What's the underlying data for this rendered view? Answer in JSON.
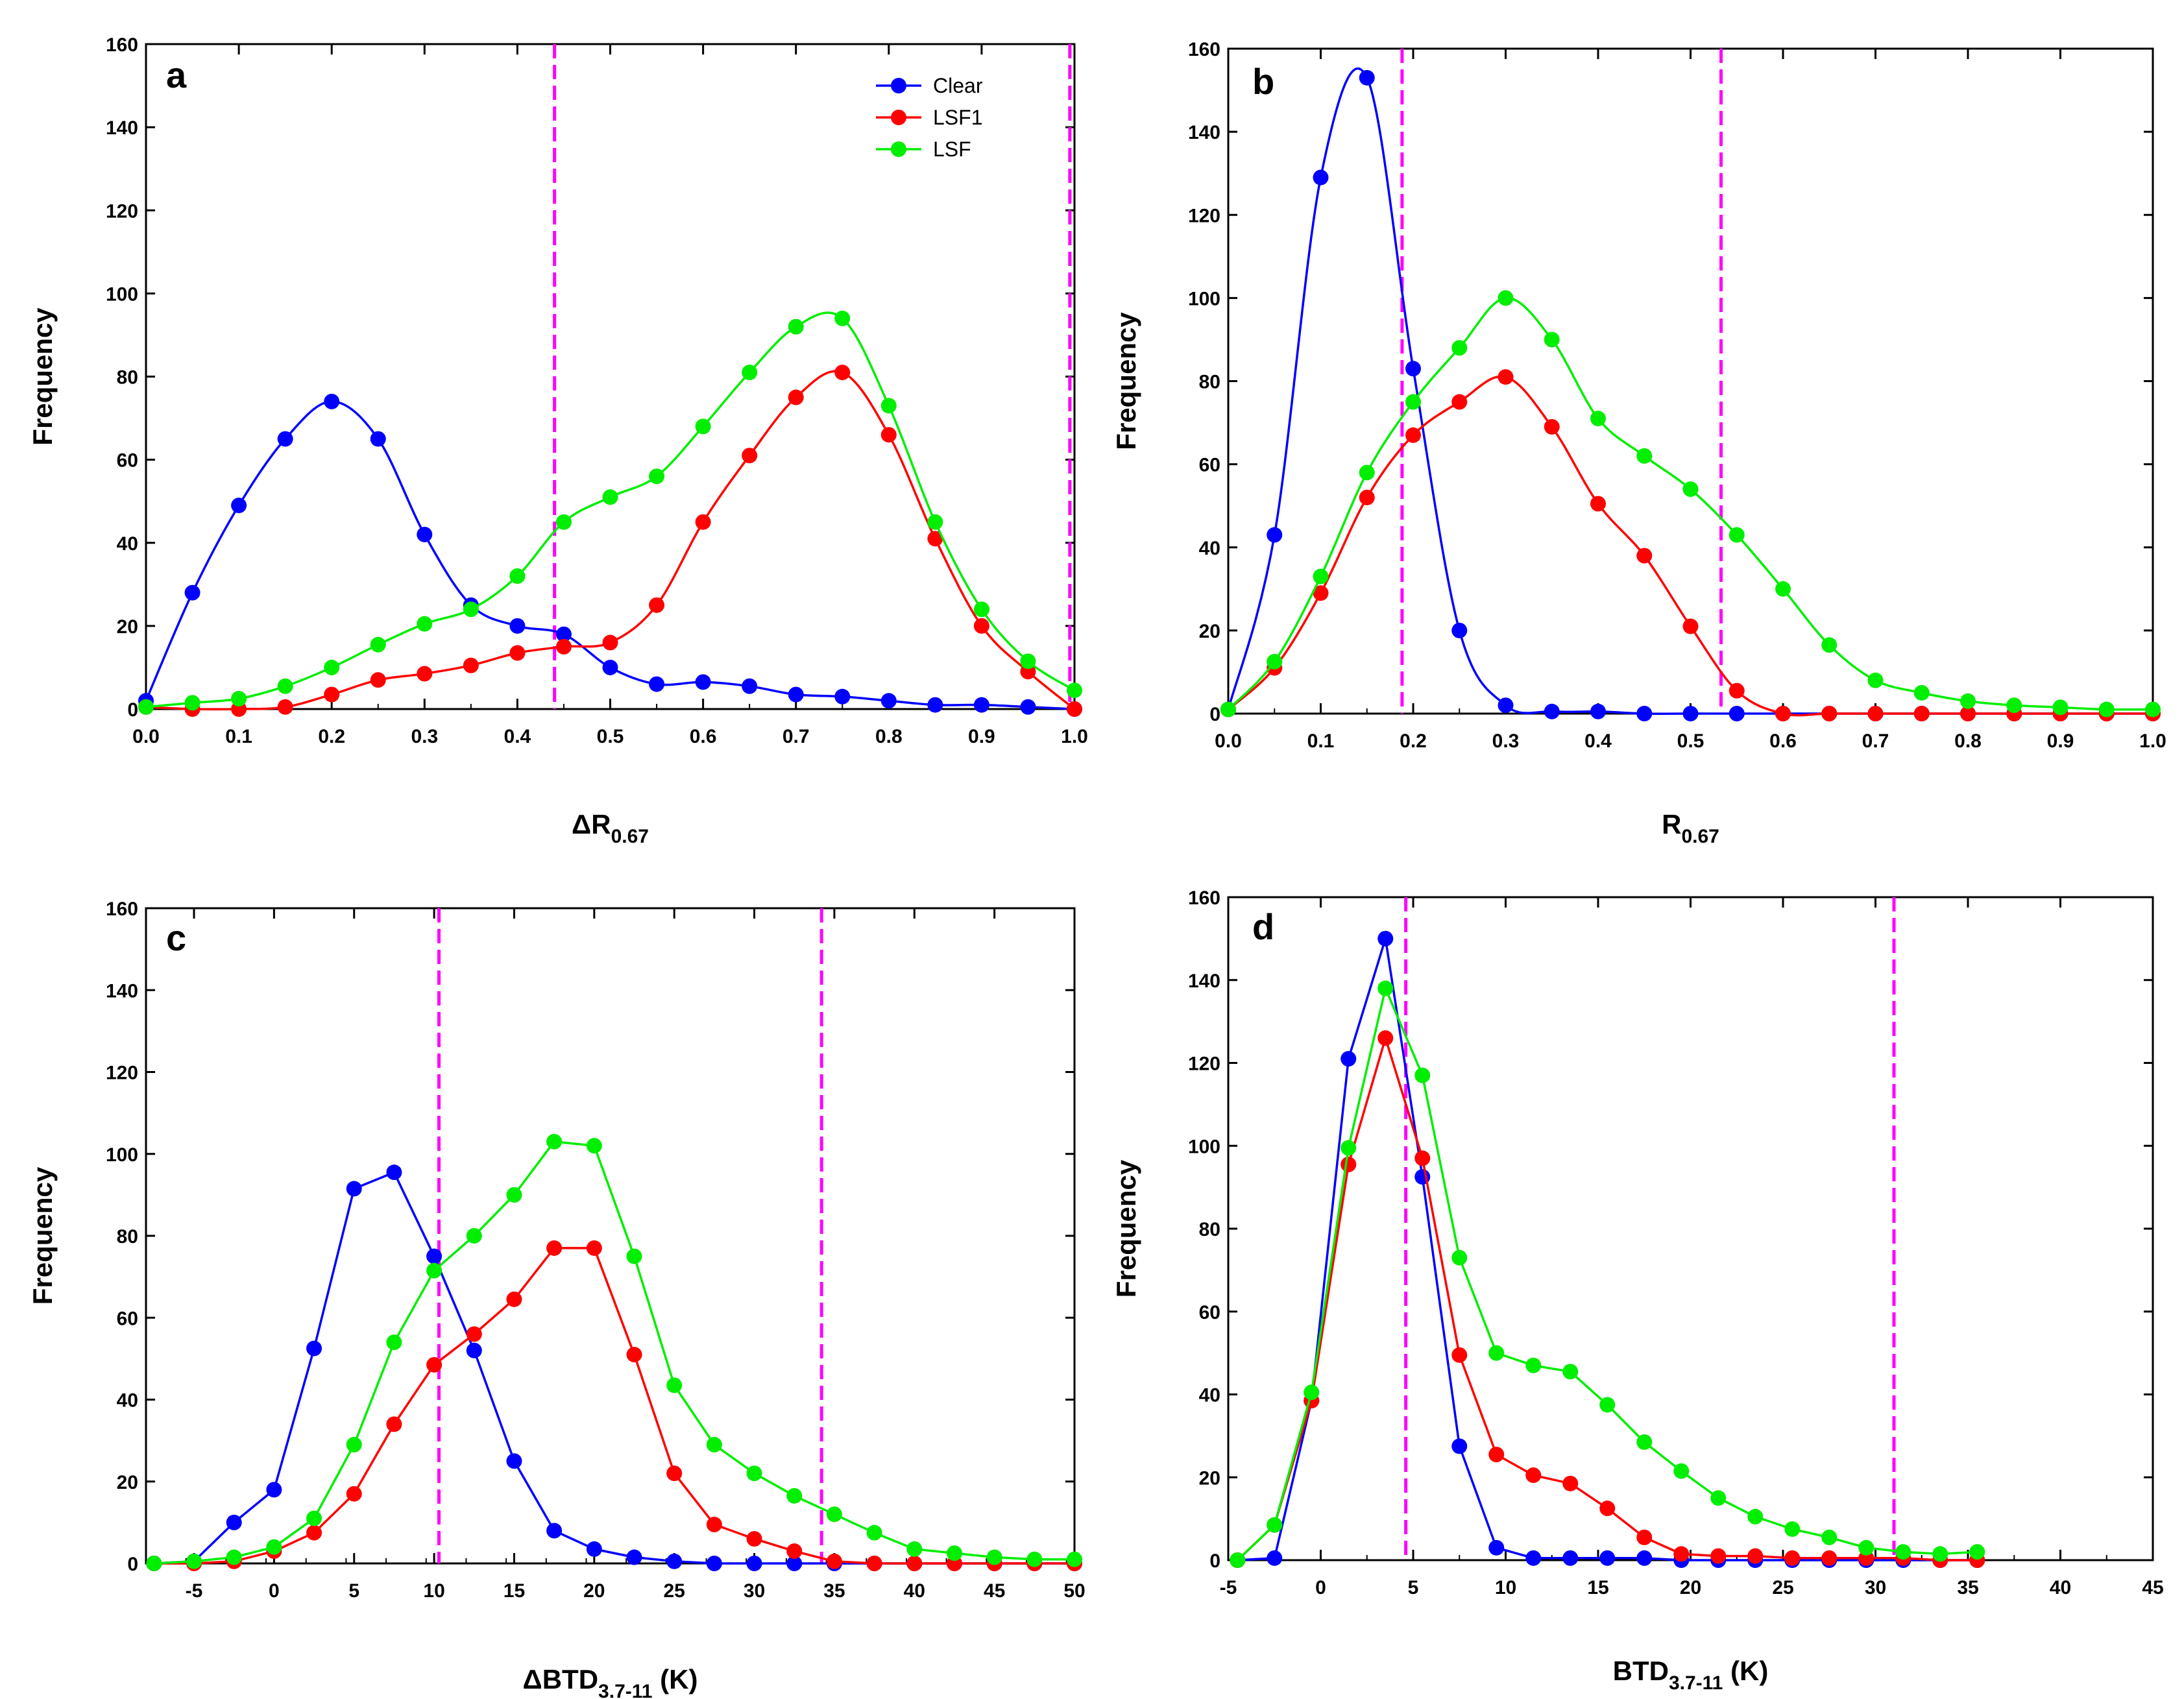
{
  "colors": {
    "Clear": "#0000ff",
    "LSF1": "#ff0000",
    "LSF": "#00ee00",
    "threshold": "#ff00ff",
    "axis": "#000000"
  },
  "chart_data": [
    {
      "type": "line",
      "panel": "a",
      "smooth": true,
      "xlabel_main": "ΔR",
      "xlabel_sub": "0.67",
      "ylabel": "Frequency",
      "xlim": [
        0.0,
        1.0
      ],
      "ylim": [
        0,
        160
      ],
      "xticks": [
        "0.0",
        "0.1",
        "0.2",
        "0.3",
        "0.4",
        "0.5",
        "0.6",
        "0.7",
        "0.8",
        "0.9",
        "1.0"
      ],
      "yticks": [
        "0",
        "20",
        "40",
        "60",
        "80",
        "100",
        "120",
        "140",
        "160"
      ],
      "thresholds": [
        0.44,
        0.995
      ],
      "legend": {
        "position": "top-right",
        "entries": [
          "Clear",
          "LSF1",
          "LSF"
        ]
      },
      "x": [
        0.0,
        0.05,
        0.1,
        0.15,
        0.2,
        0.25,
        0.3,
        0.35,
        0.4,
        0.45,
        0.5,
        0.55,
        0.6,
        0.65,
        0.7,
        0.75,
        0.8,
        0.85,
        0.9,
        0.95,
        1.0
      ],
      "series": [
        {
          "name": "Clear",
          "values": [
            2,
            28,
            49,
            65,
            74,
            65,
            42,
            25,
            20,
            18,
            10,
            6,
            6.5,
            5.5,
            3.5,
            3,
            2,
            1,
            1,
            0.5,
            0
          ]
        },
        {
          "name": "LSF1",
          "values": [
            0.5,
            0,
            0,
            0.5,
            3.5,
            7,
            8.5,
            10.5,
            13.5,
            15,
            16,
            25,
            45,
            61,
            75,
            81,
            66,
            41,
            20,
            9,
            0
          ]
        },
        {
          "name": "LSF",
          "values": [
            0.5,
            1.5,
            2.5,
            5.5,
            10,
            15.5,
            20.5,
            24,
            32,
            45,
            51,
            56,
            68,
            81,
            92,
            94,
            73,
            45,
            24,
            11.5,
            4.5
          ]
        }
      ]
    },
    {
      "type": "line",
      "panel": "b",
      "smooth": true,
      "xlabel_main": "R",
      "xlabel_sub": "0.67",
      "ylabel": "Frequency",
      "xlim": [
        0.0,
        1.0
      ],
      "ylim": [
        0,
        160
      ],
      "xticks": [
        "0.0",
        "0.1",
        "0.2",
        "0.3",
        "0.4",
        "0.5",
        "0.6",
        "0.7",
        "0.8",
        "0.9",
        "1.0"
      ],
      "yticks": [
        "0",
        "20",
        "40",
        "60",
        "80",
        "100",
        "120",
        "140",
        "160"
      ],
      "thresholds": [
        0.188,
        0.533
      ],
      "x": [
        0.0,
        0.05,
        0.1,
        0.15,
        0.2,
        0.25,
        0.3,
        0.35,
        0.4,
        0.45,
        0.5,
        0.55,
        0.6,
        0.65,
        0.7,
        0.75,
        0.8,
        0.85,
        0.9,
        0.95,
        1.0
      ],
      "series": [
        {
          "name": "Clear",
          "values": [
            1,
            43,
            129,
            153,
            83,
            20,
            2,
            0.5,
            0.5,
            0,
            0,
            0,
            0,
            0,
            0,
            0,
            0,
            0,
            0,
            0,
            0
          ]
        },
        {
          "name": "LSF1",
          "values": [
            1,
            11,
            29,
            52,
            67,
            75,
            81,
            69,
            50.5,
            38,
            21,
            5.5,
            0,
            0,
            0,
            0,
            0,
            0,
            0,
            0,
            0
          ]
        },
        {
          "name": "LSF",
          "values": [
            1,
            12.5,
            33,
            58,
            75,
            88,
            100,
            90,
            71,
            62,
            54,
            43,
            30,
            16.5,
            8,
            5,
            3,
            2,
            1.5,
            1,
            1
          ]
        }
      ]
    },
    {
      "type": "line",
      "panel": "c",
      "smooth": false,
      "xlabel_main": "ΔBTD",
      "xlabel_sub": "3.7-11",
      "xlabel_unit": " (K)",
      "ylabel": "Frequency",
      "xlim": [
        -8,
        50
      ],
      "ylim": [
        0,
        160
      ],
      "xticks": [
        "-5",
        "0",
        "5",
        "10",
        "15",
        "20",
        "25",
        "30",
        "35",
        "40",
        "45",
        "50"
      ],
      "yticks": [
        "0",
        "20",
        "40",
        "60",
        "80",
        "100",
        "120",
        "140",
        "160"
      ],
      "thresholds": [
        10.3,
        34.2
      ],
      "x": [
        -7.5,
        -5,
        -2.5,
        0,
        2.5,
        5,
        7.5,
        10,
        12.5,
        15,
        17.5,
        20,
        22.5,
        25,
        27.5,
        30,
        32.5,
        35,
        37.5,
        40,
        42.5,
        45,
        47.5,
        50
      ],
      "series": [
        {
          "name": "Clear",
          "values": [
            0,
            0.5,
            10,
            18,
            52.5,
            91.5,
            95.5,
            75,
            52,
            25,
            8,
            3.5,
            1.5,
            0.5,
            0,
            0,
            0,
            0,
            0,
            0,
            0,
            0,
            0,
            0
          ]
        },
        {
          "name": "LSF1",
          "values": [
            0,
            0,
            0.5,
            3,
            7.5,
            17,
            34,
            48.5,
            56,
            64.5,
            77,
            77,
            51,
            22,
            9.5,
            6,
            3,
            0.5,
            0,
            0,
            0,
            0,
            0,
            0
          ]
        },
        {
          "name": "LSF",
          "values": [
            0,
            0.5,
            1.5,
            4,
            11,
            29,
            54,
            71.5,
            80,
            90,
            103,
            102,
            75,
            43.5,
            29,
            22,
            16.5,
            12,
            7.5,
            3.5,
            2.5,
            1.5,
            1,
            1
          ]
        }
      ]
    },
    {
      "type": "line",
      "panel": "d",
      "smooth": false,
      "xlabel_main": "BTD",
      "xlabel_sub": "3.7-11",
      "xlabel_unit": " (K)",
      "ylabel": "Frequency",
      "xlim": [
        -5,
        45
      ],
      "ylim": [
        0,
        160
      ],
      "xticks": [
        "-5",
        "0",
        "5",
        "10",
        "15",
        "20",
        "25",
        "30",
        "35",
        "40",
        "45"
      ],
      "yticks": [
        "0",
        "20",
        "40",
        "60",
        "80",
        "100",
        "120",
        "140",
        "160"
      ],
      "thresholds": [
        4.6,
        31.0
      ],
      "x": [
        -4.5,
        -2.5,
        -0.5,
        1.5,
        3.5,
        5.5,
        7.5,
        9.5,
        11.5,
        13.5,
        15.5,
        17.5,
        19.5,
        21.5,
        23.5,
        25.5,
        27.5,
        29.5,
        31.5,
        33.5,
        35.5
      ],
      "series": [
        {
          "name": "Clear",
          "values": [
            0,
            0.5,
            38.5,
            121,
            150,
            92.5,
            27.5,
            3,
            0.5,
            0.5,
            0.5,
            0.5,
            0,
            0,
            0,
            0,
            0,
            0,
            0,
            0,
            0
          ]
        },
        {
          "name": "LSF1",
          "values": [
            0,
            8.5,
            38.5,
            95.5,
            126,
            97,
            49.5,
            25.5,
            20.5,
            18.5,
            12.5,
            5.5,
            1.5,
            1,
            1,
            0.5,
            0.5,
            0.5,
            0.5,
            0,
            0
          ]
        },
        {
          "name": "LSF",
          "values": [
            0,
            8.5,
            40.5,
            99.5,
            138,
            117,
            73,
            50,
            47,
            45.5,
            37.5,
            28.5,
            21.5,
            15,
            10.5,
            7.5,
            5.5,
            3,
            2,
            1.5,
            2
          ]
        }
      ]
    }
  ]
}
